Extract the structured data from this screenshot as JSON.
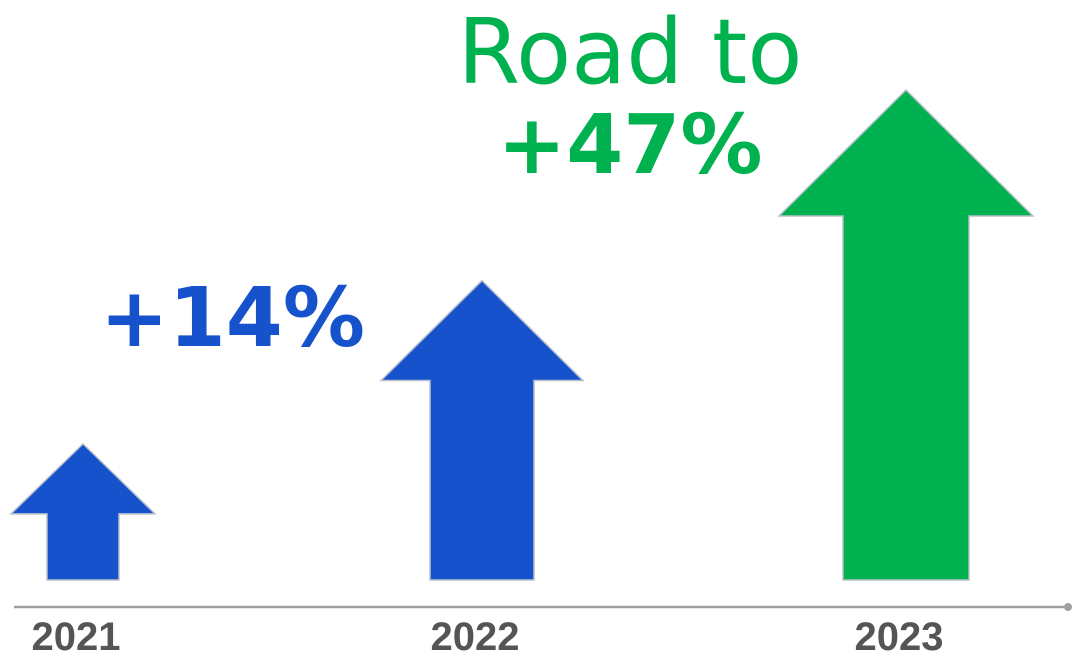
{
  "chart_data": {
    "type": "bar",
    "categories": [
      "2021",
      "2022",
      "2023"
    ],
    "values": [
      1.0,
      2.2,
      3.6
    ],
    "title": "",
    "xlabel": "",
    "ylabel": "",
    "bar_shape": "up-arrow",
    "grid": false,
    "bar_colors": [
      "#1652cc",
      "#1652cc",
      "#00b14f"
    ],
    "annotations": [
      {
        "category": "2022",
        "text": "+14%",
        "color": "#1652cc"
      },
      {
        "category": "2023",
        "text_line1": "Road to",
        "text_line2": "+47%",
        "color": "#00b14f"
      }
    ],
    "axis_color": "#a0a0a0"
  }
}
